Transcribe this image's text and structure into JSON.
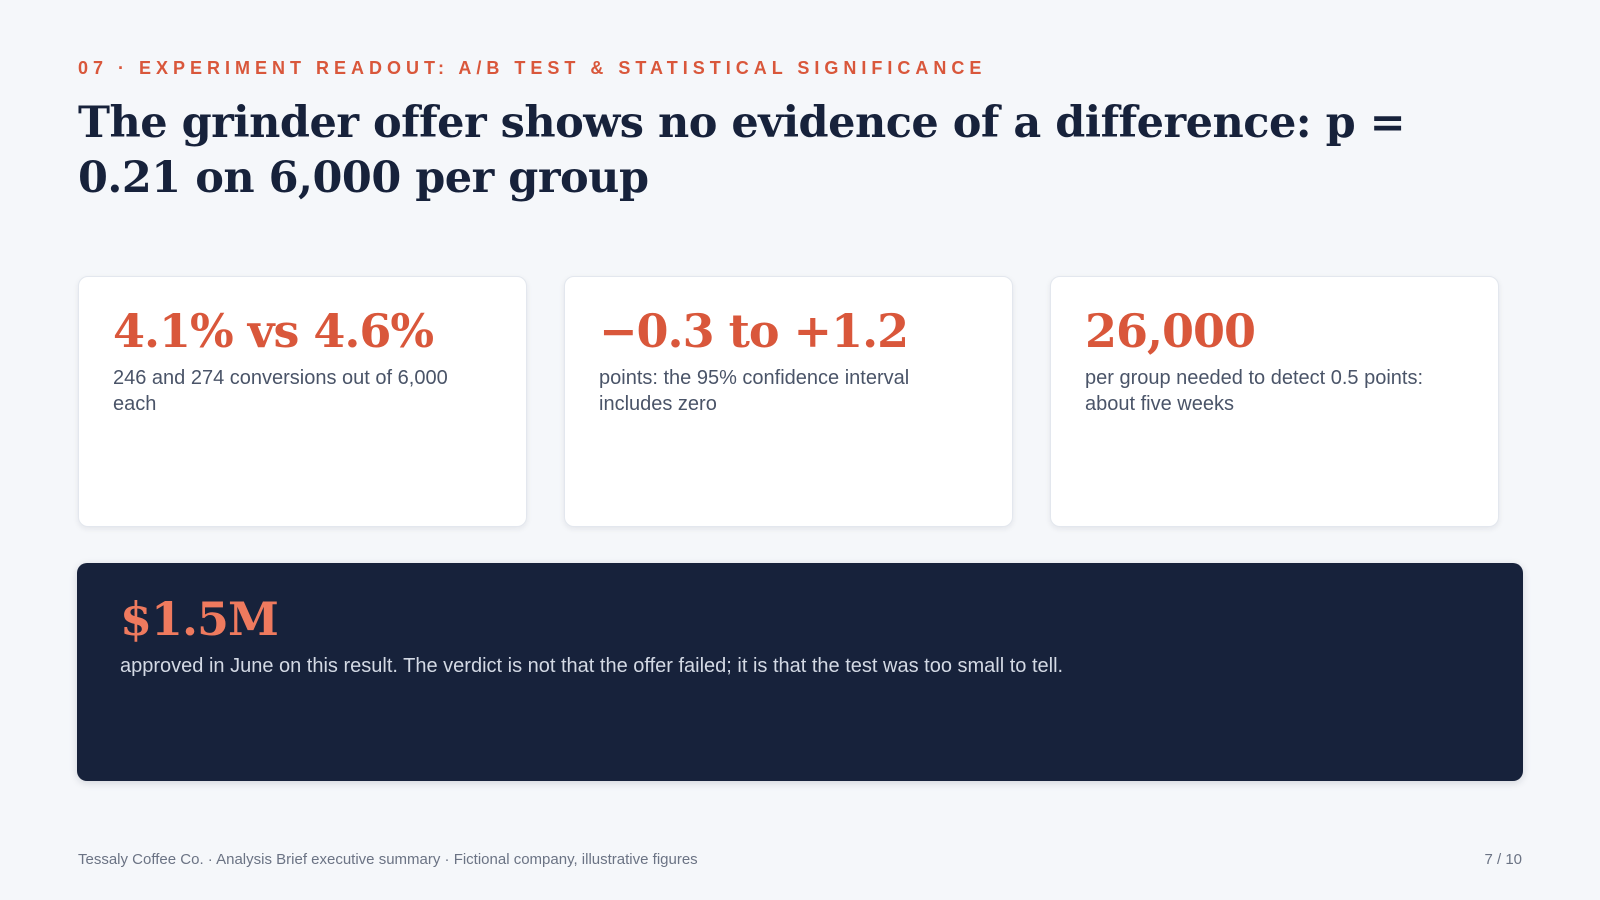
{
  "header": {
    "eyebrow": "07 · EXPERIMENT READOUT: A/B TEST & STATISTICAL SIGNIFICANCE",
    "title": "The grinder offer shows no evidence of a difference: p = 0.21 on 6,000 per group"
  },
  "cards": [
    {
      "value": "4.1% vs 4.6%",
      "description": "246 and 274 conversions out of 6,000 each"
    },
    {
      "value": "−0.3 to +1.2",
      "description": "points: the 95% confidence interval includes zero"
    },
    {
      "value": "26,000",
      "description": "per group needed to detect 0.5 points: about five weeks"
    }
  ],
  "banner": {
    "value": "$1.5M",
    "description": "approved in June on this result. The verdict is not that the offer failed; it is that the test was too small to tell."
  },
  "footer": {
    "source": "Tessaly Coffee Co. · Analysis Brief executive summary · Fictional company, illustrative figures",
    "page": "7 / 10"
  },
  "colors": {
    "accent": "#d9573b",
    "accent_light": "#ef7a5e",
    "navy": "#17223b",
    "background": "#f5f7fa"
  }
}
